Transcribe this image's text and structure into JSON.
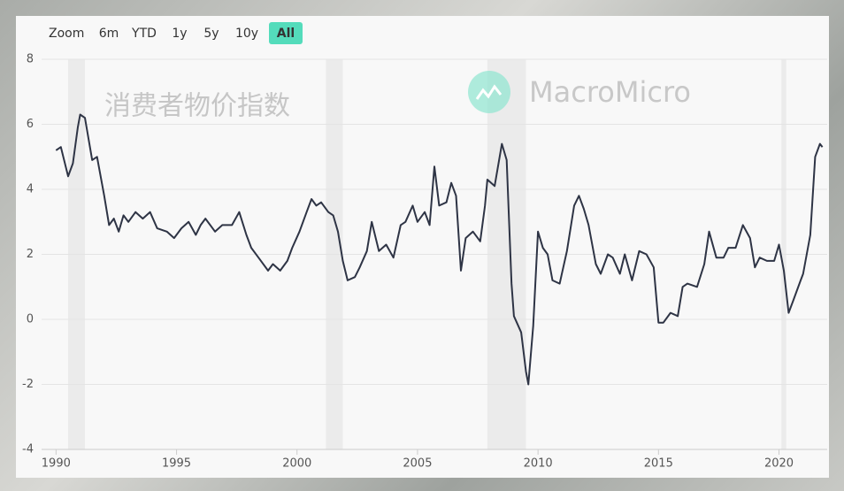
{
  "chart_data": {
    "type": "line",
    "title": "消费者物价指数",
    "brand": "MacroMicro",
    "zoom_label": "Zoom",
    "range_buttons": [
      "6m",
      "YTD",
      "1y",
      "5y",
      "10y",
      "All"
    ],
    "active_button": 5,
    "x": [
      1990.0,
      1990.2,
      1990.5,
      1990.7,
      1990.9,
      1991.0,
      1991.2,
      1991.5,
      1991.7,
      1992.0,
      1992.2,
      1992.4,
      1992.6,
      1992.8,
      1993.0,
      1993.3,
      1993.6,
      1993.9,
      1994.2,
      1994.6,
      1994.9,
      1995.2,
      1995.5,
      1995.8,
      1996.0,
      1996.2,
      1996.6,
      1996.9,
      1997.3,
      1997.6,
      1997.9,
      1998.1,
      1998.4,
      1998.8,
      1999.0,
      1999.3,
      1999.6,
      1999.8,
      2000.1,
      2000.4,
      2000.6,
      2000.8,
      2001.0,
      2001.3,
      2001.5,
      2001.7,
      2001.9,
      2002.1,
      2002.4,
      2002.6,
      2002.9,
      2003.1,
      2003.4,
      2003.7,
      2004.0,
      2004.3,
      2004.5,
      2004.8,
      2005.0,
      2005.3,
      2005.5,
      2005.7,
      2005.9,
      2006.2,
      2006.4,
      2006.6,
      2006.8,
      2007.0,
      2007.3,
      2007.6,
      2007.8,
      2007.9,
      2008.2,
      2008.5,
      2008.7,
      2008.9,
      2009.0,
      2009.3,
      2009.5,
      2009.6,
      2009.8,
      2010.0,
      2010.2,
      2010.4,
      2010.6,
      2010.9,
      2011.2,
      2011.5,
      2011.7,
      2011.9,
      2012.1,
      2012.4,
      2012.6,
      2012.9,
      2013.1,
      2013.4,
      2013.6,
      2013.9,
      2014.2,
      2014.5,
      2014.8,
      2015.0,
      2015.2,
      2015.5,
      2015.8,
      2016.0,
      2016.2,
      2016.6,
      2016.9,
      2017.1,
      2017.4,
      2017.7,
      2017.9,
      2018.2,
      2018.5,
      2018.8,
      2019.0,
      2019.2,
      2019.5,
      2019.8,
      2020.0,
      2020.2,
      2020.4,
      2020.6,
      2020.9,
      2021.0,
      2021.3,
      2021.5,
      2021.7,
      2021.8
    ],
    "series": [
      {
        "color": "#2e3445",
        "values": [
          5.2,
          5.3,
          4.4,
          4.8,
          5.9,
          6.3,
          6.2,
          4.9,
          5.0,
          3.8,
          2.9,
          3.1,
          2.7,
          3.2,
          3.0,
          3.3,
          3.1,
          3.3,
          2.8,
          2.7,
          2.5,
          2.8,
          3.0,
          2.6,
          2.9,
          3.1,
          2.7,
          2.9,
          2.9,
          3.3,
          2.6,
          2.2,
          1.9,
          1.5,
          1.7,
          1.5,
          1.8,
          2.2,
          2.7,
          3.3,
          3.7,
          3.5,
          3.6,
          3.3,
          3.2,
          2.7,
          1.8,
          1.2,
          1.3,
          1.6,
          2.1,
          3.0,
          2.1,
          2.3,
          1.9,
          2.9,
          3.0,
          3.5,
          3.0,
          3.3,
          2.9,
          4.7,
          3.5,
          3.6,
          4.2,
          3.8,
          1.5,
          2.5,
          2.7,
          2.4,
          3.5,
          4.3,
          4.1,
          5.4,
          4.9,
          1.1,
          0.1,
          -0.4,
          -1.6,
          -2.0,
          -0.2,
          2.7,
          2.2,
          2.0,
          1.2,
          1.1,
          2.1,
          3.5,
          3.8,
          3.4,
          2.9,
          1.7,
          1.4,
          2.0,
          1.9,
          1.4,
          2.0,
          1.2,
          2.1,
          2.0,
          1.6,
          -0.1,
          -0.1,
          0.2,
          0.1,
          1.0,
          1.1,
          1.0,
          1.7,
          2.7,
          1.9,
          1.9,
          2.2,
          2.2,
          2.9,
          2.5,
          1.6,
          1.9,
          1.8,
          1.8,
          2.3,
          1.5,
          0.2,
          0.6,
          1.2,
          1.4,
          2.6,
          5.0,
          5.4,
          5.3
        ]
      }
    ],
    "recessions": [
      [
        1990.5,
        1991.2
      ],
      [
        2001.2,
        2001.9
      ],
      [
        2007.9,
        2009.5
      ],
      [
        2020.1,
        2020.3
      ]
    ],
    "recession_color": "#ebebeb",
    "xlim": [
      1989.4,
      2022
    ],
    "xticks": [
      1990,
      1995,
      2000,
      2005,
      2010,
      2015,
      2020
    ],
    "ylim": [
      -4,
      8
    ],
    "yticks": [
      -4,
      -2,
      0,
      2,
      4,
      6,
      8
    ],
    "grid": true
  }
}
